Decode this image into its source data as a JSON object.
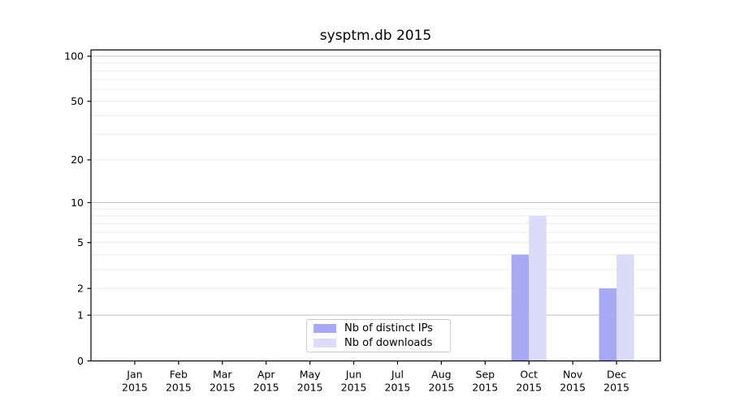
{
  "chart_data": {
    "type": "bar",
    "title": "sysptm.db 2015",
    "categories": [
      "Jan",
      "Feb",
      "Mar",
      "Apr",
      "May",
      "Jun",
      "Jul",
      "Aug",
      "Sep",
      "Oct",
      "Nov",
      "Dec"
    ],
    "year_label": "2015",
    "series": [
      {
        "name": "Nb of distinct IPs",
        "color": "#a8a8f4",
        "values": [
          0,
          0,
          0,
          0,
          0,
          0,
          0,
          0,
          0,
          4,
          0,
          2
        ]
      },
      {
        "name": "Nb of downloads",
        "color": "#dcdcfa",
        "values": [
          0,
          0,
          0,
          0,
          0,
          0,
          0,
          0,
          0,
          8,
          0,
          4
        ]
      }
    ],
    "y_axis": {
      "scale": "log1p",
      "tick_values": [
        0,
        1,
        2,
        5,
        10,
        20,
        50,
        100
      ],
      "tick_labels": [
        "0",
        "1",
        "2",
        "5",
        "10",
        "20",
        "50",
        "100"
      ],
      "major_gridlines": [
        1,
        10,
        100
      ],
      "minor_gridlines": [
        2,
        3,
        4,
        5,
        6,
        7,
        8,
        9,
        20,
        30,
        40,
        50,
        60,
        70,
        80,
        90
      ],
      "max_value": 110
    },
    "xlabel": "",
    "ylabel": "",
    "legend": {
      "position": "bottom-center"
    },
    "colors": {
      "major_grid": "#c3c3c3",
      "minor_grid": "#ededed",
      "axis": "#000000",
      "text": "#000000",
      "legend_border": "#cccccc",
      "background": "#ffffff"
    }
  }
}
